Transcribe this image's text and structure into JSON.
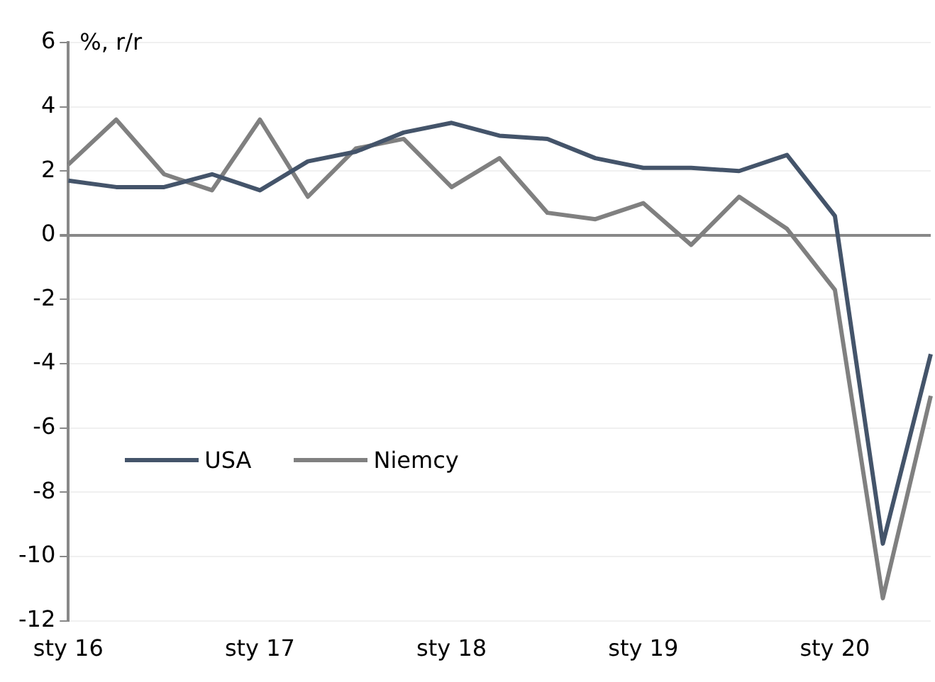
{
  "chart_data": {
    "type": "line",
    "ylabel": "%, r/r",
    "categories": [
      "sty 16",
      null,
      null,
      null,
      "sty 17",
      null,
      null,
      null,
      "sty 18",
      null,
      null,
      null,
      "sty 19",
      null,
      null,
      null,
      "sty 20",
      null,
      null
    ],
    "series": [
      {
        "name": "USA",
        "color": "#44546a",
        "values": [
          1.7,
          1.5,
          1.5,
          1.9,
          1.4,
          2.3,
          2.6,
          3.2,
          3.5,
          3.1,
          3.0,
          2.4,
          2.1,
          2.1,
          2.0,
          2.5,
          0.6,
          -9.6,
          -3.7
        ]
      },
      {
        "name": "Niemcy",
        "color": "#808080",
        "values": [
          2.2,
          3.6,
          1.9,
          1.4,
          3.6,
          1.2,
          2.7,
          3.0,
          1.5,
          2.4,
          0.7,
          0.5,
          1.0,
          -0.3,
          1.2,
          0.2,
          -1.7,
          -11.3,
          -5.0
        ]
      }
    ],
    "ylim": [
      -12,
      6
    ],
    "yticks": [
      -12,
      -10,
      -8,
      -6,
      -4,
      -2,
      0,
      2,
      4,
      6
    ],
    "grid": "y",
    "legend": "bottom left",
    "marker": "none",
    "line_style": "solid"
  }
}
